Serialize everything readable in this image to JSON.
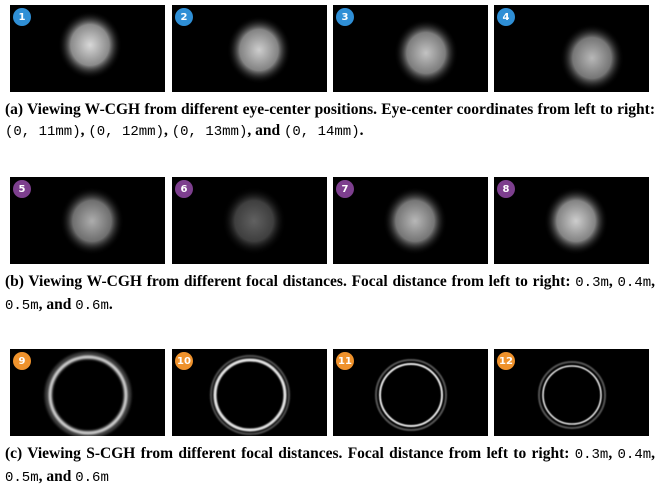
{
  "figure": {
    "rows": [
      {
        "badges": [
          "1",
          "2",
          "3",
          "4"
        ],
        "caption": [
          {
            "text": "(a) Viewing W-CGH from different eye-center positions. Eye-center coordinates from left to right: ",
            "style": "bold"
          },
          {
            "text": "(0, 11mm)",
            "style": "mono"
          },
          {
            "text": ", ",
            "style": "bold"
          },
          {
            "text": "(0, 12mm)",
            "style": "mono"
          },
          {
            "text": ", ",
            "style": "bold"
          },
          {
            "text": "(0, 13mm)",
            "style": "mono"
          },
          {
            "text": ", and ",
            "style": "bold"
          },
          {
            "text": "(0, 14mm)",
            "style": "mono"
          },
          {
            "text": ".",
            "style": "bold"
          }
        ]
      },
      {
        "badges": [
          "5",
          "6",
          "7",
          "8"
        ],
        "caption": [
          {
            "text": "(b) Viewing W-CGH from different focal distances. Focal distance from left to right: ",
            "style": "bold"
          },
          {
            "text": "0.3m",
            "style": "mono"
          },
          {
            "text": ", ",
            "style": "bold"
          },
          {
            "text": "0.4m",
            "style": "mono"
          },
          {
            "text": ", ",
            "style": "bold"
          },
          {
            "text": "0.5m",
            "style": "mono"
          },
          {
            "text": ", and ",
            "style": "bold"
          },
          {
            "text": "0.6m",
            "style": "mono"
          },
          {
            "text": ".",
            "style": "bold"
          }
        ]
      },
      {
        "badges": [
          "9",
          "10",
          "11",
          "12"
        ],
        "caption": [
          {
            "text": "(c) Viewing S-CGH from different focal distances. Focal distance from left to right: ",
            "style": "bold"
          },
          {
            "text": "0.3m",
            "style": "mono"
          },
          {
            "text": ", ",
            "style": "bold"
          },
          {
            "text": "0.4m",
            "style": "mono"
          },
          {
            "text": ", ",
            "style": "bold"
          },
          {
            "text": "0.5m",
            "style": "mono"
          },
          {
            "text": ", and ",
            "style": "bold"
          },
          {
            "text": "0.6m",
            "style": "mono"
          }
        ]
      }
    ]
  }
}
